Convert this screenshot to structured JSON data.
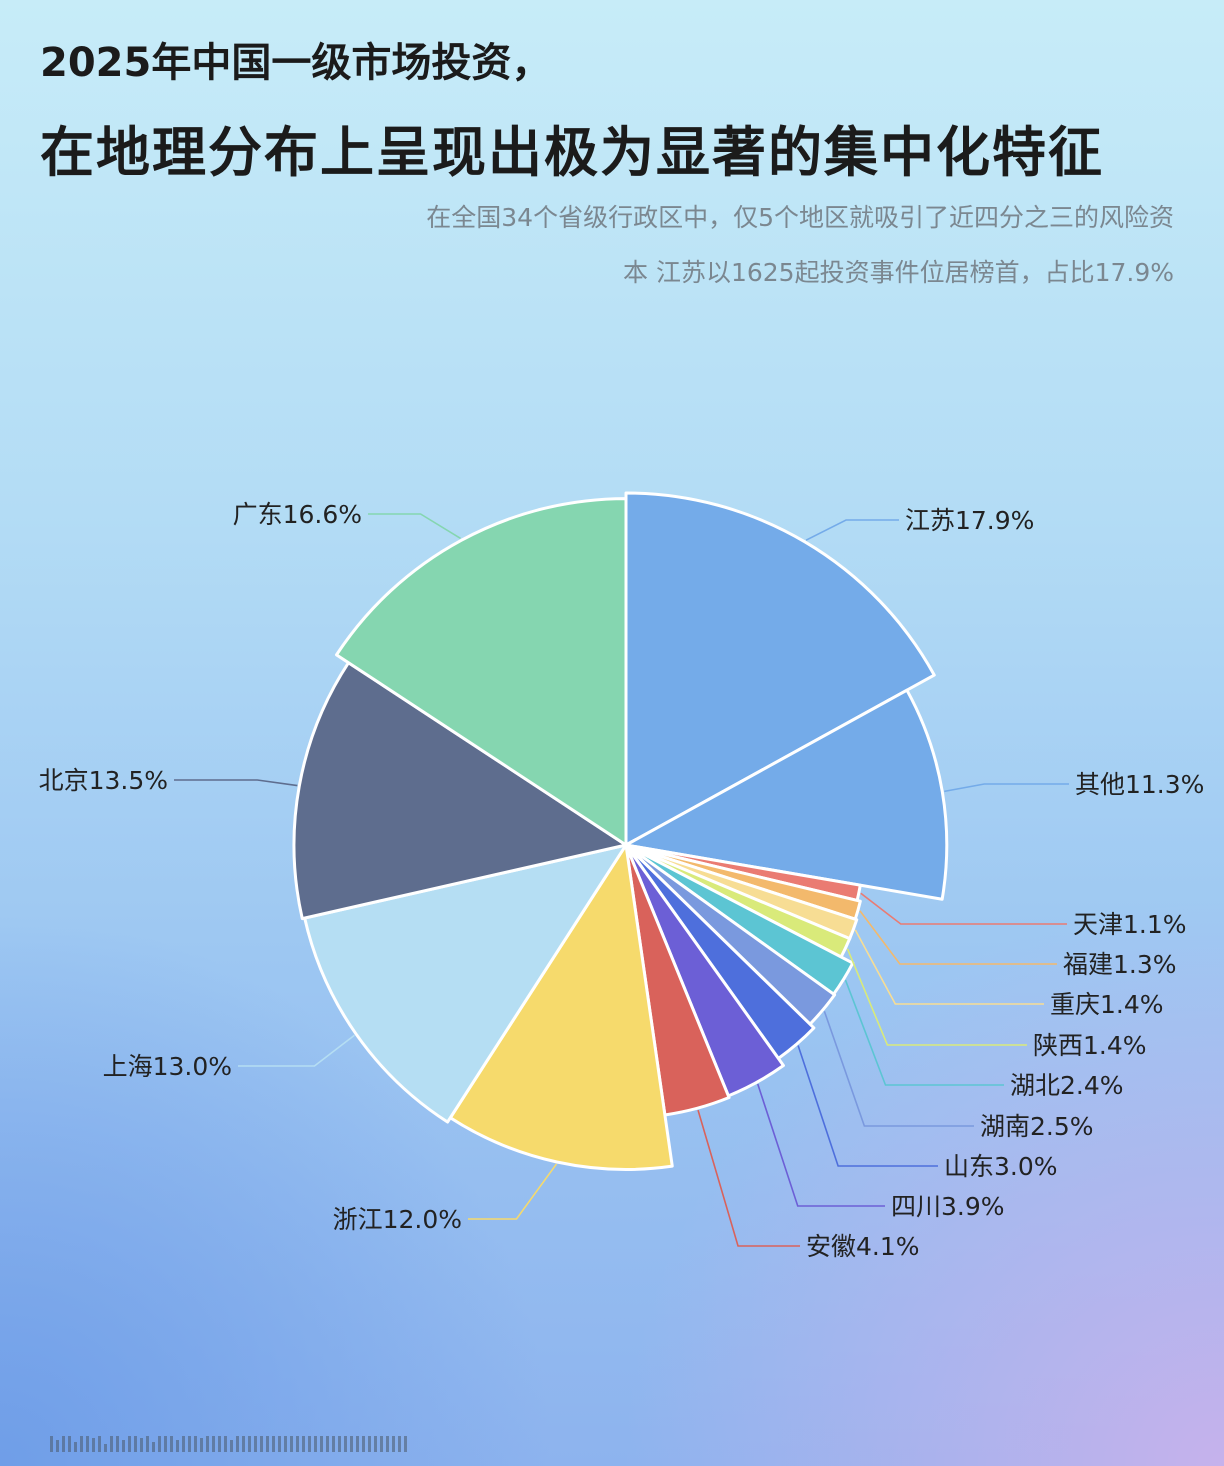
{
  "header": {
    "title_line1": "2025年中国一级市场投资，",
    "title_line2": "在地理分布上呈现出极为显著的集中化特征",
    "subtitle_line1": "在全国34个省级行政区中，仅5个地区就吸引了近四分之三的风险资",
    "subtitle_line2": "本 江苏以1625起投资事件位居榜首，占比17.9%"
  },
  "chart_data": {
    "type": "pie",
    "variant": "rose-with-gaps",
    "unit": "%",
    "slices": [
      {
        "name": "江苏",
        "value": 17.9,
        "label": "江苏17.9%",
        "color": "#74abe9"
      },
      {
        "name": "其他",
        "value": 11.3,
        "label": "其他11.3%",
        "color": "#74abe9"
      },
      {
        "name": "天津",
        "value": 1.1,
        "label": "天津1.1%",
        "color": "#ea7b72"
      },
      {
        "name": "福建",
        "value": 1.3,
        "label": "福建1.3%",
        "color": "#f3b96c"
      },
      {
        "name": "重庆",
        "value": 1.4,
        "label": "重庆1.4%",
        "color": "#f7dd94"
      },
      {
        "name": "陕西",
        "value": 1.4,
        "label": "陕西1.4%",
        "color": "#d9ea7a"
      },
      {
        "name": "湖北",
        "value": 2.4,
        "label": "湖北2.4%",
        "color": "#5cc5d3"
      },
      {
        "name": "湖南",
        "value": 2.5,
        "label": "湖南2.5%",
        "color": "#7a99de"
      },
      {
        "name": "山东",
        "value": 3.0,
        "label": "山东3.0%",
        "color": "#4e6fdc"
      },
      {
        "name": "四川",
        "value": 3.9,
        "label": "四川3.9%",
        "color": "#6c5fd6"
      },
      {
        "name": "安徽",
        "value": 4.1,
        "label": "安徽4.1%",
        "color": "#d9625b"
      },
      {
        "name": "浙江",
        "value": 12.0,
        "label": "浙江12.0%",
        "color": "#f6da6c"
      },
      {
        "name": "上海",
        "value": 13.0,
        "label": "上海13.0%",
        "color": "#b5def3"
      },
      {
        "name": "北京",
        "value": 13.5,
        "label": "北京13.5%",
        "color": "#5e6d8e"
      },
      {
        "name": "广东",
        "value": 16.6,
        "label": "广东16.6%",
        "color": "#85d6b0"
      }
    ]
  }
}
